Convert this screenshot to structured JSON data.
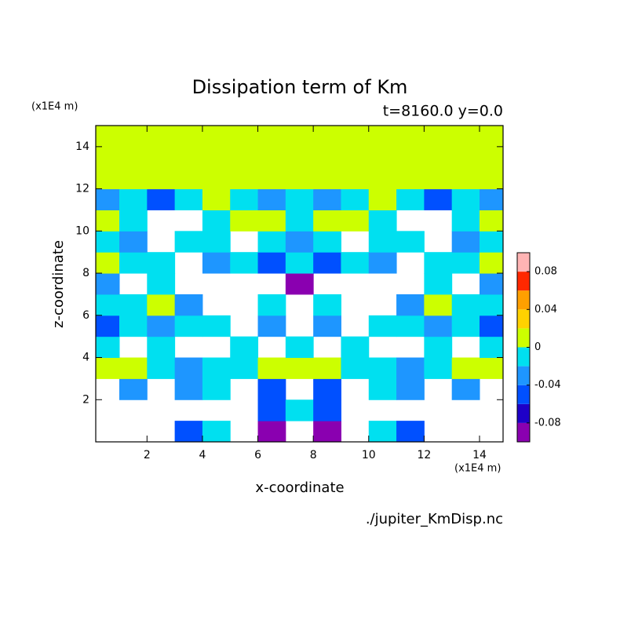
{
  "chart_data": {
    "type": "contour",
    "title": "Dissipation term of Km",
    "subtitle": "t=8160.0 y=0.0",
    "x_label": "x-coordinate",
    "y_label": "z-coordinate",
    "x_unit": "(x1E4 m)",
    "y_unit": "(x1E4 m)",
    "source": "./jupiter_KmDisp.nc",
    "xlim": [
      0.15,
      14.85
    ],
    "ylim": [
      0,
      15
    ],
    "xticks": [
      2,
      4,
      6,
      8,
      10,
      12,
      14
    ],
    "yticks": [
      2,
      4,
      6,
      8,
      10,
      12,
      14
    ],
    "x": [
      0.5,
      1.5,
      2.5,
      3.5,
      4.5,
      5.5,
      6.5,
      7.5,
      8.5,
      9.5,
      10.5,
      11.5,
      12.5,
      13.5,
      14.5
    ],
    "y": [
      0.5,
      1.5,
      2.5,
      3.5,
      4.5,
      5.5,
      6.5,
      7.5,
      8.5,
      9.5,
      10.5,
      11.5,
      12.5,
      13.5,
      14.5
    ],
    "values": [
      [
        null,
        null,
        null,
        -0.05,
        -0.01,
        null,
        -0.09,
        null,
        -0.09,
        null,
        -0.01,
        -0.05,
        null,
        null,
        null
      ],
      [
        null,
        null,
        null,
        null,
        null,
        null,
        -0.05,
        -0.01,
        -0.05,
        null,
        null,
        null,
        null,
        null,
        null
      ],
      [
        null,
        -0.03,
        null,
        -0.03,
        -0.01,
        null,
        -0.05,
        null,
        -0.05,
        null,
        -0.01,
        -0.03,
        null,
        -0.03,
        null
      ],
      [
        0.01,
        0.01,
        -0.01,
        -0.03,
        -0.01,
        -0.01,
        0.01,
        0.01,
        0.01,
        -0.01,
        -0.01,
        -0.03,
        -0.01,
        0.01,
        0.01
      ],
      [
        -0.01,
        null,
        -0.01,
        null,
        null,
        -0.01,
        null,
        -0.01,
        null,
        -0.01,
        null,
        null,
        -0.01,
        null,
        -0.01
      ],
      [
        -0.05,
        -0.01,
        -0.03,
        -0.01,
        -0.01,
        null,
        -0.03,
        null,
        -0.03,
        null,
        -0.01,
        -0.01,
        -0.03,
        -0.01,
        -0.05
      ],
      [
        -0.01,
        -0.01,
        0.01,
        -0.03,
        null,
        null,
        -0.01,
        null,
        -0.01,
        null,
        null,
        -0.03,
        0.01,
        -0.01,
        -0.01
      ],
      [
        -0.03,
        null,
        -0.01,
        null,
        null,
        null,
        null,
        -0.09,
        null,
        null,
        null,
        null,
        -0.01,
        null,
        -0.03
      ],
      [
        0.01,
        -0.01,
        -0.01,
        null,
        -0.03,
        -0.01,
        -0.05,
        -0.01,
        -0.05,
        -0.01,
        -0.03,
        null,
        -0.01,
        -0.01,
        0.01
      ],
      [
        -0.01,
        -0.03,
        null,
        -0.01,
        -0.01,
        null,
        -0.01,
        -0.03,
        -0.01,
        null,
        -0.01,
        -0.01,
        null,
        -0.03,
        -0.01
      ],
      [
        0.01,
        -0.01,
        null,
        null,
        -0.01,
        0.01,
        0.01,
        -0.01,
        0.01,
        0.01,
        -0.01,
        null,
        null,
        -0.01,
        0.01
      ],
      [
        -0.03,
        -0.01,
        -0.05,
        -0.01,
        0.01,
        -0.01,
        -0.03,
        -0.01,
        -0.03,
        -0.01,
        0.01,
        -0.01,
        -0.05,
        -0.01,
        -0.03
      ],
      [
        0.01,
        0.01,
        0.01,
        0.01,
        0.01,
        0.01,
        0.01,
        0.01,
        0.01,
        0.01,
        0.01,
        0.01,
        0.01,
        0.01,
        0.01
      ],
      [
        0.01,
        0.01,
        0.01,
        0.01,
        0.01,
        0.01,
        0.01,
        0.01,
        0.01,
        0.01,
        0.01,
        0.01,
        0.01,
        0.01,
        0.01
      ],
      [
        0.01,
        0.01,
        0.01,
        0.01,
        0.01,
        0.01,
        0.01,
        0.01,
        0.01,
        0.01,
        0.01,
        0.01,
        0.01,
        0.01,
        0.01
      ]
    ],
    "levels": [
      -0.1,
      -0.08,
      -0.06,
      -0.04,
      -0.02,
      0,
      0.02,
      0.04,
      0.06,
      0.08,
      0.1
    ],
    "colors": [
      "#8a00b0",
      "#1e00c8",
      "#0050ff",
      "#1e96ff",
      "#00e0f0",
      "#ccff00",
      "#ffd200",
      "#ffa000",
      "#ff2800",
      "#ffb4b4"
    ],
    "colorbar_ticks": [
      0.08,
      0.04,
      0,
      -0.04,
      -0.08
    ]
  }
}
